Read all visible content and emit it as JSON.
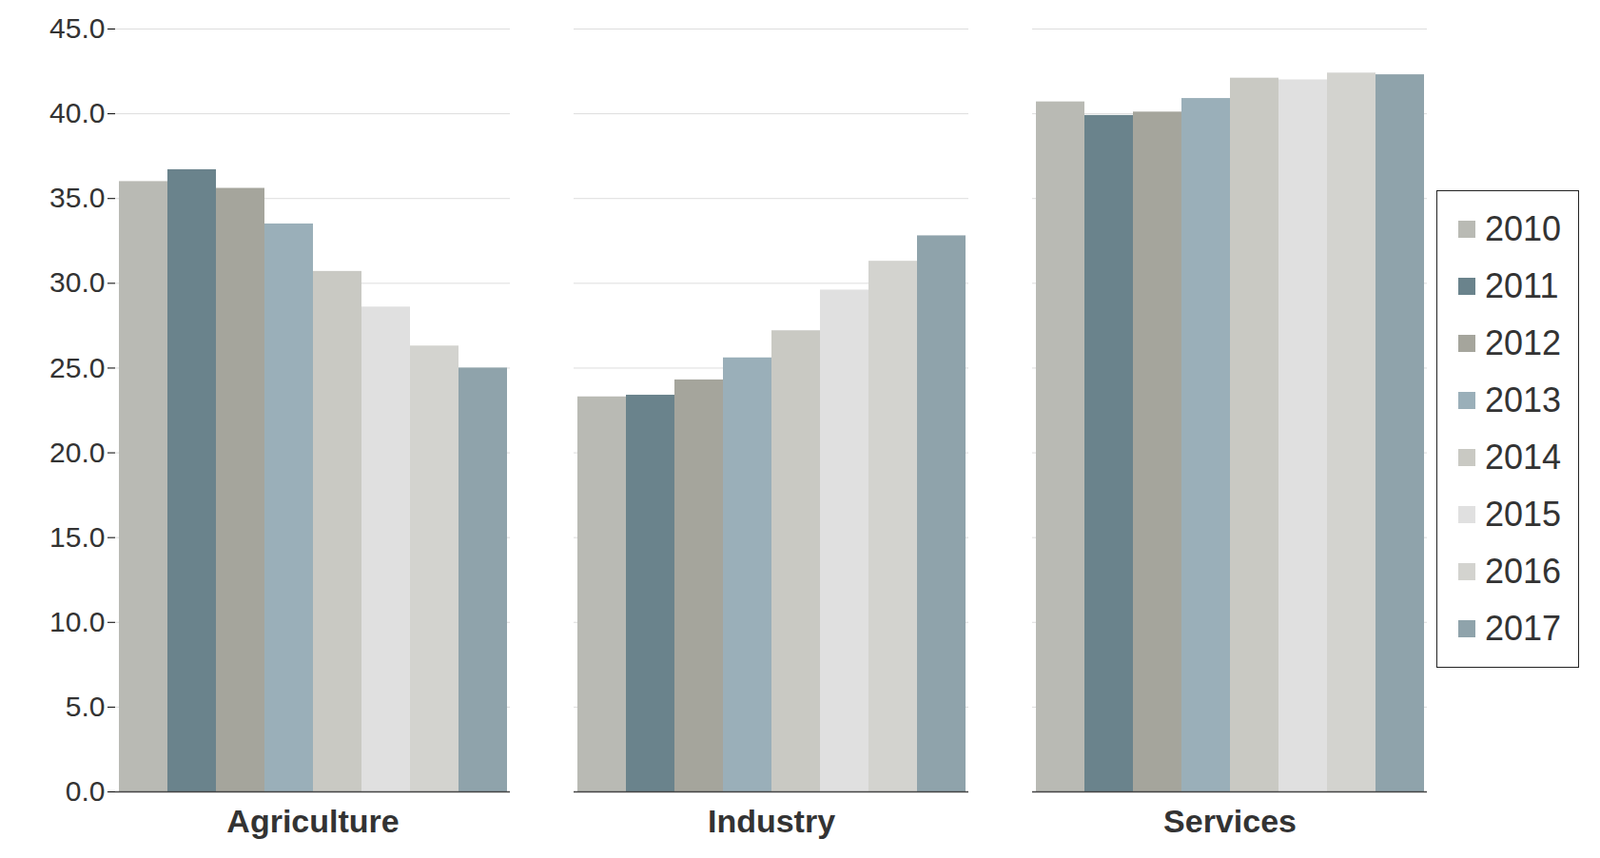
{
  "chart_data": {
    "type": "bar",
    "categories": [
      "Agriculture",
      "Industry",
      "Services"
    ],
    "series": [
      {
        "name": "2010",
        "color": "#b9bab4",
        "values": [
          36.0,
          23.3,
          40.7
        ]
      },
      {
        "name": "2011",
        "color": "#6a838c",
        "values": [
          36.7,
          23.4,
          39.9
        ]
      },
      {
        "name": "2012",
        "color": "#a5a59c",
        "values": [
          35.6,
          24.3,
          40.1
        ]
      },
      {
        "name": "2013",
        "color": "#9aafb9",
        "values": [
          33.5,
          25.6,
          40.9
        ]
      },
      {
        "name": "2014",
        "color": "#c9c9c3",
        "values": [
          30.7,
          27.2,
          42.1
        ]
      },
      {
        "name": "2015",
        "color": "#e0e0e0",
        "values": [
          28.6,
          29.6,
          42.0
        ]
      },
      {
        "name": "2016",
        "color": "#d3d3cf",
        "values": [
          26.3,
          31.3,
          42.4
        ]
      },
      {
        "name": "2017",
        "color": "#8fa3ab",
        "values": [
          25.0,
          32.8,
          42.3
        ]
      }
    ],
    "ylim": [
      0,
      45
    ],
    "yticks": [
      {
        "value": 0,
        "label": "0.0"
      },
      {
        "value": 5,
        "label": "5.0"
      },
      {
        "value": 10,
        "label": "10.0"
      },
      {
        "value": 15,
        "label": "15.0"
      },
      {
        "value": 20,
        "label": "20.0"
      },
      {
        "value": 25,
        "label": "25.0"
      },
      {
        "value": 30,
        "label": "30.0"
      },
      {
        "value": 35,
        "label": "35.0"
      },
      {
        "value": 40,
        "label": "40.0"
      },
      {
        "value": 45,
        "label": "45.0"
      }
    ],
    "grid": true,
    "legend": "right"
  }
}
